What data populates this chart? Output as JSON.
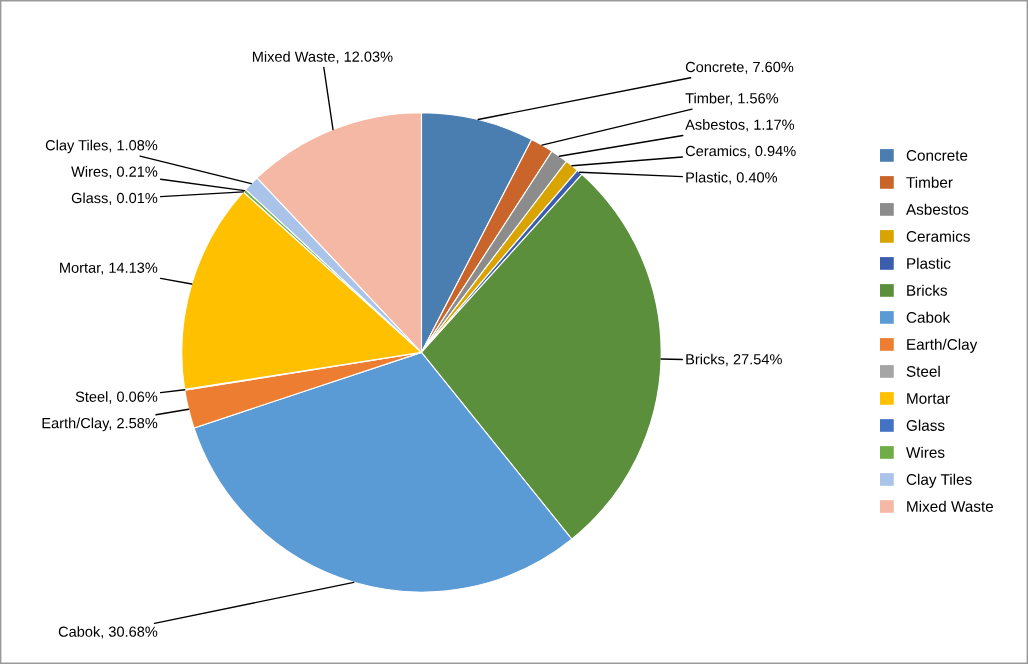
{
  "chart_data": {
    "type": "pie",
    "categories": [
      "Concrete",
      "Timber",
      "Asbestos",
      "Ceramics",
      "Plastic",
      "Bricks",
      "Cabok",
      "Earth/Clay",
      "Steel",
      "Mortar",
      "Glass",
      "Wires",
      "Clay Tiles",
      "Mixed Waste"
    ],
    "values": [
      7.6,
      1.56,
      1.17,
      0.94,
      0.4,
      27.54,
      30.68,
      2.58,
      0.06,
      14.13,
      0.01,
      0.21,
      1.08,
      12.03
    ],
    "value_labels": [
      "Concrete, 7.60%",
      "Timber, 1.56%",
      "Asbestos, 1.17%",
      "Ceramics, 0.94%",
      "Plastic, 0.40%",
      "Bricks, 27.54%",
      "Cabok, 30.68%",
      "Earth/Clay, 2.58%",
      "Steel, 0.06%",
      "Mortar, 14.13%",
      "Glass, 0.01%",
      "Wires, 0.21%",
      "Clay Tiles, 1.08%",
      "Mixed Waste, 12.03%"
    ],
    "colors": [
      "#4a7eb0",
      "#c9642a",
      "#8c8c8c",
      "#d9a400",
      "#3a5dae",
      "#5b8f3b",
      "#5b9bd5",
      "#ed7d31",
      "#a5a5a5",
      "#ffc000",
      "#4472c4",
      "#70ad47",
      "#a9c4e8",
      "#f4b8a4"
    ],
    "legend": "right"
  }
}
